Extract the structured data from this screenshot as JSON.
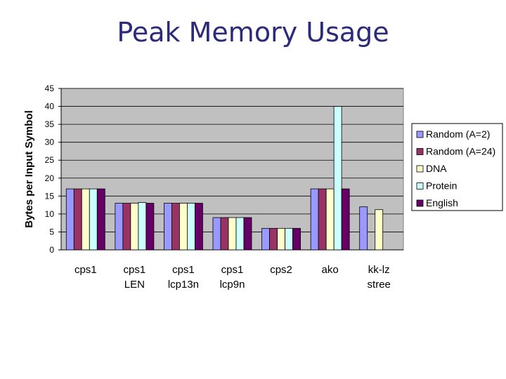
{
  "slide": {
    "title": "Peak Memory Usage"
  },
  "chart_data": {
    "type": "bar",
    "categories": [
      [
        "cps1"
      ],
      [
        "cps1",
        "LEN"
      ],
      [
        "cps1",
        "lcp13n"
      ],
      [
        "cps1",
        "lcp9n"
      ],
      [
        "cps2"
      ],
      [
        "ako"
      ],
      [
        "kk-lz",
        "stree"
      ]
    ],
    "series": [
      {
        "name": "Random (A=2)",
        "color": "#9999ff",
        "values": [
          17,
          13,
          13,
          9,
          6,
          17,
          12
        ]
      },
      {
        "name": "Random (A=24)",
        "color": "#993366",
        "values": [
          17,
          13,
          13,
          9,
          6,
          17,
          null
        ]
      },
      {
        "name": "DNA",
        "color": "#ffffcc",
        "values": [
          17,
          13,
          13,
          9,
          6,
          17,
          11.2
        ]
      },
      {
        "name": "Protein",
        "color": "#ccffff",
        "values": [
          17,
          13.2,
          13,
          9,
          6,
          40,
          null
        ]
      },
      {
        "name": "English",
        "color": "#660066",
        "values": [
          17,
          13,
          13,
          9,
          6,
          17,
          null
        ]
      }
    ],
    "ylabel": "Bytes per Input Symbol",
    "ylim": [
      0,
      45
    ],
    "yticks": [
      0,
      5,
      10,
      15,
      20,
      25,
      30,
      35,
      40,
      45
    ],
    "grid": true,
    "legend": "right",
    "plot_background": "#c0c0c0"
  }
}
